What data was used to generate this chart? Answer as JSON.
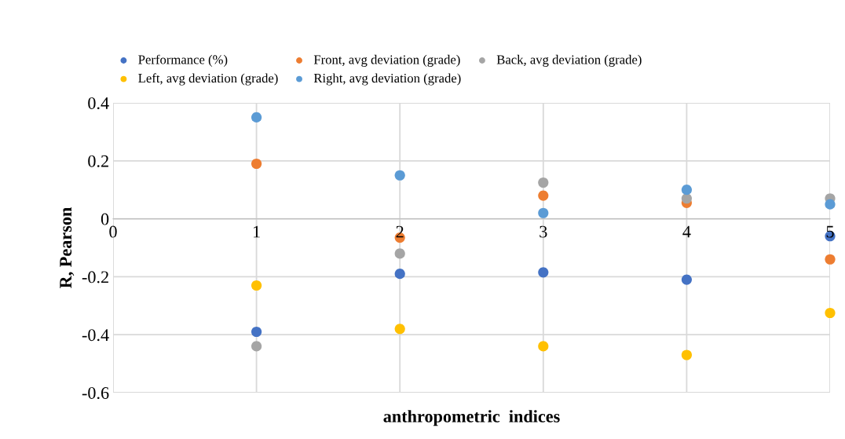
{
  "chart_data": {
    "type": "scatter",
    "xlabel": "anthropometric  indices",
    "ylabel": "R, Pearson",
    "x": [
      1,
      2,
      3,
      4,
      5
    ],
    "series": [
      {
        "name": "Performance (%)",
        "color": "#4472c4",
        "values": [
          -0.39,
          -0.19,
          -0.185,
          -0.21,
          -0.06
        ]
      },
      {
        "name": "Front, avg deviation (grade)",
        "color": "#ed7d31",
        "values": [
          0.19,
          -0.065,
          0.08,
          0.055,
          -0.14
        ]
      },
      {
        "name": "Back, avg deviation (grade)",
        "color": "#a5a5a5",
        "values": [
          -0.44,
          -0.12,
          0.125,
          0.07,
          0.07
        ]
      },
      {
        "name": "Left, avg deviation (grade)",
        "color": "#ffc000",
        "values": [
          -0.23,
          -0.38,
          -0.44,
          -0.47,
          -0.325
        ]
      },
      {
        "name": "Right, avg deviation (grade)",
        "color": "#5b9bd5",
        "values": [
          0.35,
          0.15,
          0.02,
          0.1,
          0.05
        ]
      }
    ],
    "xlim": [
      0,
      5
    ],
    "xticks": [
      0,
      1,
      2,
      3,
      4,
      5
    ],
    "ylim": [
      -0.6,
      0.4
    ],
    "yticks": [
      {
        "value": -0.6,
        "label": "-0.6"
      },
      {
        "value": -0.4,
        "label": "-0.4"
      },
      {
        "value": -0.2,
        "label": "-0.2"
      },
      0,
      {
        "value": 0.2,
        "label": "0.2"
      },
      {
        "value": 0.4,
        "label": "0.4"
      }
    ],
    "grid": true,
    "legend": "top",
    "marker": "circle"
  }
}
